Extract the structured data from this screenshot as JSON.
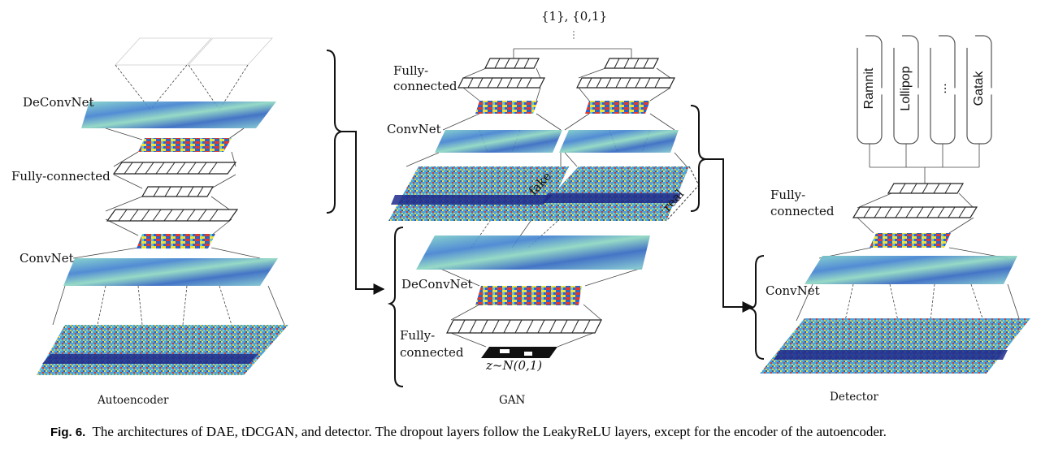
{
  "colors": {
    "teal": "#6fc9c4",
    "blue": "#2a5fbf",
    "yellow": "#f2e93a",
    "red": "#d9342b",
    "navy": "#1d2a8c",
    "line": "#333333"
  },
  "autoencoder": {
    "deconvnet": "DeConvNet",
    "fully_connected": "Fully-connected",
    "convnet": "ConvNet",
    "title": "Autoencoder"
  },
  "gan": {
    "top_label": "{1}, {0,1}",
    "fc_line1": "Fully-",
    "fc_line2": "connected",
    "convnet": "ConvNet",
    "fake": "fake",
    "real": "real",
    "deconvnet": "DeConvNet",
    "gen_fc_line1": "Fully-",
    "gen_fc_line2": "connected",
    "noise": "z~N(0,1)",
    "title": "GAN"
  },
  "detector": {
    "classes": [
      "Ramnit",
      "Lollipop",
      "...",
      "Gatak"
    ],
    "fc_line1": "Fully-",
    "fc_line2": "connected",
    "convnet": "ConvNet",
    "title": "Detector"
  },
  "caption": {
    "label": "Fig. 6.",
    "text": "The architectures of DAE, tDCGAN, and detector. The dropout layers follow the LeakyReLU layers, except for the encoder of the autoencoder."
  }
}
